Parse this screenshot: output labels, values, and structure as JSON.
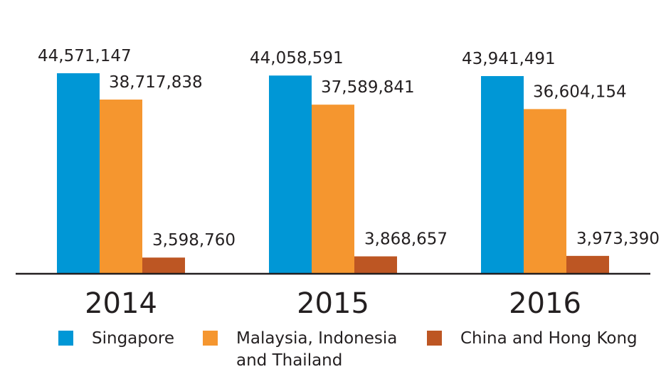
{
  "colors": {
    "singapore": "#0097d6",
    "malaysia": "#f5962f",
    "china": "#bd5623",
    "axis": "#231f20",
    "text": "#231f20"
  },
  "chart_data": {
    "type": "bar",
    "categories": [
      "2014",
      "2015",
      "2016"
    ],
    "series": [
      {
        "name": "Singapore",
        "values": [
          44571147,
          44058591,
          43941491
        ],
        "labels": [
          "44,571,147",
          "44,058,591",
          "43,941,491"
        ]
      },
      {
        "name": "Malaysia, Indonesia and Thailand",
        "values": [
          38717838,
          37589841,
          36604154
        ],
        "labels": [
          "38,717,838",
          "37,589,841",
          "36,604,154"
        ]
      },
      {
        "name": "China and Hong Kong",
        "values": [
          3598760,
          3868657,
          3973390
        ],
        "labels": [
          "3,598,760",
          "3,868,657",
          "3,973,390"
        ]
      }
    ],
    "title": "",
    "xlabel": "",
    "ylabel": "",
    "ylim": [
      0,
      46000000
    ],
    "grid": false,
    "legend": "bottom"
  },
  "legend": {
    "items": [
      {
        "label_line1": "Singapore",
        "label_line2": ""
      },
      {
        "label_line1": "Malaysia, Indonesia",
        "label_line2": "and Thailand"
      },
      {
        "label_line1": "China and Hong Kong",
        "label_line2": ""
      }
    ]
  }
}
